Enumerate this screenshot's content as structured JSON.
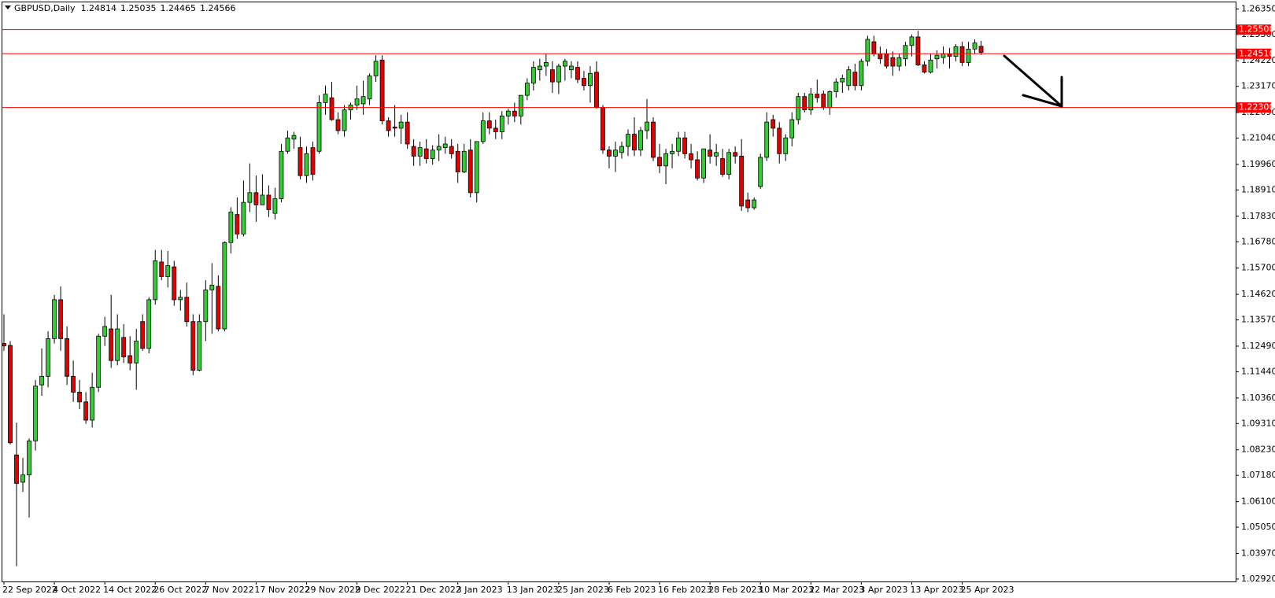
{
  "chart_data": {
    "type": "candlestick",
    "title": "GBPUSD,Daily",
    "categories": [
      "22 Sep 2022",
      null,
      null,
      null,
      null,
      null,
      null,
      null,
      "4 Oct 2022",
      null,
      null,
      null,
      null,
      null,
      null,
      null,
      "14 Oct 2022",
      null,
      null,
      null,
      null,
      null,
      null,
      null,
      "26 Oct 2022",
      null,
      null,
      null,
      null,
      null,
      null,
      null,
      "7 Nov 2022",
      null,
      null,
      null,
      null,
      null,
      null,
      null,
      "17 Nov 2022",
      null,
      null,
      null,
      null,
      null,
      null,
      null,
      "29 Nov 2022",
      null,
      null,
      null,
      null,
      null,
      null,
      null,
      "9 Dec 2022",
      null,
      null,
      null,
      null,
      null,
      null,
      null,
      "21 Dec 2022",
      null,
      null,
      null,
      null,
      null,
      null,
      null,
      "3 Jan 2023",
      null,
      null,
      null,
      null,
      null,
      null,
      null,
      "13 Jan 2023",
      null,
      null,
      null,
      null,
      null,
      null,
      null,
      "25 Jan 2023",
      null,
      null,
      null,
      null,
      null,
      null,
      null,
      "6 Feb 2023",
      null,
      null,
      null,
      null,
      null,
      null,
      null,
      "16 Feb 2023",
      null,
      null,
      null,
      null,
      null,
      null,
      null,
      "28 Feb 2023",
      null,
      null,
      null,
      null,
      null,
      null,
      null,
      "10 Mar 2023",
      null,
      null,
      null,
      null,
      null,
      null,
      null,
      "22 Mar 2023",
      null,
      null,
      null,
      null,
      null,
      null,
      null,
      "3 Apr 2023",
      null,
      null,
      null,
      null,
      null,
      null,
      null,
      "13 Apr 2023",
      null,
      null,
      null,
      null,
      null,
      null,
      null,
      "25 Apr 2023",
      null,
      null,
      null
    ],
    "open": [
      1.126,
      1.1252,
      1.0802,
      1.069,
      1.072,
      1.086,
      1.109,
      1.1125,
      1.128,
      1.144,
      1.128,
      1.1125,
      1.106,
      1.102,
      1.0945,
      1.108,
      1.129,
      1.132,
      1.119,
      1.1285,
      1.121,
      1.118,
      1.135,
      1.124,
      1.144,
      1.1595,
      1.1535,
      1.1575,
      1.144,
      1.145,
      1.135,
      1.115,
      1.135,
      1.148,
      1.1495,
      1.132,
      1.1675,
      1.179,
      1.171,
      1.184,
      1.188,
      1.183,
      1.187,
      1.1795,
      1.1855,
      1.205,
      1.21,
      1.2065,
      1.195,
      1.2065,
      1.205,
      1.225,
      1.227,
      1.218,
      1.2135,
      1.222,
      1.224,
      1.2245,
      1.2265,
      1.236,
      1.2425,
      1.2175,
      1.215,
      1.2145,
      1.217,
      1.207,
      1.203,
      1.206,
      1.202,
      1.2055,
      1.2065,
      1.207,
      1.205,
      1.1965,
      1.2055,
      1.188,
      1.209,
      1.2175,
      1.2145,
      1.213,
      1.2195,
      1.2215,
      1.2195,
      1.228,
      1.233,
      1.2385,
      1.24,
      1.2385,
      1.2335,
      1.24,
      1.2385,
      1.2395,
      1.235,
      1.232,
      1.2375,
      1.223,
      1.2055,
      1.203,
      1.2045,
      1.207,
      1.212,
      1.2055,
      1.2135,
      1.217,
      1.2025,
      1.199,
      1.204,
      1.205,
      1.2105,
      1.204,
      1.2015,
      1.194,
      1.2055,
      1.203,
      1.202,
      1.1955,
      1.2045,
      1.203,
      1.185,
      1.1818,
      1.1905,
      1.2025,
      1.218,
      1.2145,
      1.204,
      1.2105,
      1.218,
      1.2275,
      1.222,
      1.2285,
      1.2285,
      1.223,
      1.2295,
      1.2335,
      1.232,
      1.2375,
      1.232,
      1.242,
      1.25,
      1.245,
      1.245,
      1.2435,
      1.24,
      1.243,
      1.2485,
      1.252,
      1.2405,
      1.2375,
      1.243,
      1.2435,
      1.245,
      1.244,
      1.248,
      1.2415,
      1.247,
      1.24814
    ],
    "high": [
      1.138,
      1.127,
      1.0935,
      1.079,
      1.087,
      1.111,
      1.124,
      1.131,
      1.146,
      1.1495,
      1.133,
      1.119,
      1.111,
      1.106,
      1.114,
      1.13,
      1.137,
      1.146,
      1.138,
      1.134,
      1.129,
      1.132,
      1.138,
      1.145,
      1.1645,
      1.1645,
      1.164,
      1.16,
      1.148,
      1.151,
      1.138,
      1.138,
      1.152,
      1.159,
      1.154,
      1.168,
      1.182,
      1.186,
      1.193,
      1.2,
      1.195,
      1.1955,
      1.191,
      1.19,
      1.208,
      1.2135,
      1.213,
      1.211,
      1.207,
      1.209,
      1.228,
      1.232,
      1.2335,
      1.221,
      1.224,
      1.225,
      1.232,
      1.234,
      1.237,
      1.2445,
      1.2445,
      1.219,
      1.224,
      1.22,
      1.221,
      1.21,
      1.209,
      1.21,
      1.2075,
      1.212,
      1.211,
      1.21,
      1.208,
      1.208,
      1.21,
      1.209,
      1.221,
      1.221,
      1.218,
      1.2215,
      1.2225,
      1.225,
      1.228,
      1.235,
      1.242,
      1.243,
      1.245,
      1.242,
      1.241,
      1.243,
      1.242,
      1.242,
      1.238,
      1.24,
      1.242,
      1.224,
      1.207,
      1.209,
      1.209,
      1.214,
      1.219,
      1.215,
      1.2265,
      1.219,
      1.208,
      1.206,
      1.208,
      1.213,
      1.213,
      1.208,
      1.205,
      1.206,
      1.212,
      1.208,
      1.206,
      1.206,
      1.207,
      1.21,
      1.188,
      1.186,
      1.204,
      1.221,
      1.22,
      1.217,
      1.212,
      1.221,
      1.229,
      1.229,
      1.231,
      1.2345,
      1.23,
      1.23,
      1.235,
      1.2365,
      1.24,
      1.241,
      1.243,
      1.2525,
      1.2525,
      1.248,
      1.247,
      1.246,
      1.245,
      1.25,
      1.253,
      1.2545,
      1.242,
      1.245,
      1.2465,
      1.248,
      1.2475,
      1.249,
      1.25,
      1.25,
      1.251,
      1.25035
    ],
    "low": [
      1.123,
      1.0845,
      1.0345,
      1.065,
      1.0545,
      1.082,
      1.1045,
      1.108,
      1.126,
      1.123,
      1.109,
      1.102,
      1.099,
      1.093,
      1.0915,
      1.106,
      1.125,
      1.116,
      1.117,
      1.118,
      1.115,
      1.107,
      1.123,
      1.122,
      1.142,
      1.152,
      1.149,
      1.1415,
      1.1395,
      1.133,
      1.113,
      1.1145,
      1.127,
      1.13,
      1.131,
      1.131,
      1.163,
      1.169,
      1.17,
      1.18,
      1.176,
      1.183,
      1.178,
      1.177,
      1.184,
      1.204,
      1.206,
      1.1935,
      1.192,
      1.193,
      1.204,
      1.22,
      1.2175,
      1.212,
      1.211,
      1.218,
      1.222,
      1.22,
      1.224,
      1.2335,
      1.216,
      1.211,
      1.211,
      1.208,
      1.206,
      1.199,
      1.199,
      1.2,
      1.1995,
      1.201,
      1.204,
      1.202,
      1.192,
      1.196,
      1.186,
      1.184,
      1.208,
      1.212,
      1.21,
      1.21,
      1.216,
      1.217,
      1.216,
      1.226,
      1.23,
      1.234,
      1.236,
      1.229,
      1.2285,
      1.234,
      1.235,
      1.233,
      1.23,
      1.225,
      1.2225,
      1.204,
      1.198,
      1.1965,
      1.202,
      1.203,
      1.203,
      1.203,
      1.21,
      1.201,
      1.196,
      1.1915,
      1.198,
      1.203,
      1.202,
      1.198,
      1.193,
      1.192,
      1.2,
      1.199,
      1.1945,
      1.1935,
      1.2,
      1.1805,
      1.18,
      1.181,
      1.1895,
      1.201,
      1.211,
      1.2,
      1.201,
      1.207,
      1.216,
      1.221,
      1.22,
      1.225,
      1.222,
      1.22,
      1.227,
      1.229,
      1.23,
      1.23,
      1.23,
      1.24,
      1.244,
      1.241,
      1.239,
      1.236,
      1.238,
      1.24,
      1.244,
      1.24,
      1.237,
      1.237,
      1.239,
      1.241,
      1.239,
      1.242,
      1.24,
      1.24,
      1.245,
      1.24465
    ],
    "close": [
      1.125,
      1.0852,
      1.0685,
      1.072,
      1.086,
      1.1085,
      1.1125,
      1.128,
      1.144,
      1.128,
      1.1125,
      1.106,
      1.102,
      1.0945,
      1.108,
      1.129,
      1.133,
      1.119,
      1.132,
      1.1205,
      1.118,
      1.127,
      1.124,
      1.144,
      1.16,
      1.1535,
      1.158,
      1.144,
      1.145,
      1.135,
      1.115,
      1.135,
      1.148,
      1.15,
      1.132,
      1.1675,
      1.18,
      1.171,
      1.184,
      1.188,
      1.183,
      1.187,
      1.181,
      1.1855,
      1.205,
      1.2105,
      1.2115,
      1.195,
      1.204,
      1.1955,
      1.225,
      1.2285,
      1.218,
      1.2135,
      1.222,
      1.224,
      1.2265,
      1.2275,
      1.236,
      1.242,
      1.2175,
      1.2135,
      1.2145,
      1.217,
      1.208,
      1.203,
      1.2065,
      1.202,
      1.2055,
      1.207,
      1.208,
      1.204,
      1.1965,
      1.205,
      1.188,
      1.209,
      1.2175,
      1.2145,
      1.213,
      1.2195,
      1.2215,
      1.2195,
      1.228,
      1.233,
      1.2395,
      1.24,
      1.2415,
      1.2335,
      1.24,
      1.242,
      1.24,
      1.2345,
      1.232,
      1.237,
      1.223,
      1.2055,
      1.203,
      1.2055,
      1.207,
      1.212,
      1.2055,
      1.2135,
      1.217,
      1.2025,
      1.199,
      1.204,
      1.205,
      1.2105,
      1.204,
      1.2015,
      1.194,
      1.206,
      1.203,
      1.2045,
      1.1955,
      1.2045,
      1.203,
      1.1825,
      1.1818,
      1.185,
      1.2025,
      1.217,
      1.2145,
      1.204,
      1.2105,
      1.218,
      1.2275,
      1.222,
      1.2285,
      1.227,
      1.223,
      1.2295,
      1.2335,
      1.235,
      1.2385,
      1.232,
      1.242,
      1.251,
      1.245,
      1.243,
      1.24,
      1.24,
      1.2435,
      1.2485,
      1.252,
      1.2405,
      1.2375,
      1.2425,
      1.2445,
      1.245,
      1.244,
      1.248,
      1.2415,
      1.247,
      1.2495,
      1.24566
    ],
    "up_color": "#33cc33",
    "down_color": "#e00000",
    "ylim": [
      1.0282,
      1.2662
    ],
    "yticks": [
      {
        "value": 1.2635,
        "label": "1.26350"
      },
      {
        "value": 1.253,
        "label": "1.25300"
      },
      {
        "value": 1.2422,
        "label": "1.24220"
      },
      {
        "value": 1.2317,
        "label": "1.23170"
      },
      {
        "value": 1.2209,
        "label": "1.22090"
      },
      {
        "value": 1.2104,
        "label": "1.21040"
      },
      {
        "value": 1.1996,
        "label": "1.19960"
      },
      {
        "value": 1.1891,
        "label": "1.18910"
      },
      {
        "value": 1.1783,
        "label": "1.17830"
      },
      {
        "value": 1.1678,
        "label": "1.16780"
      },
      {
        "value": 1.157,
        "label": "1.15700"
      },
      {
        "value": 1.1462,
        "label": "1.14620"
      },
      {
        "value": 1.1357,
        "label": "1.13570"
      },
      {
        "value": 1.1249,
        "label": "1.12490"
      },
      {
        "value": 1.1144,
        "label": "1.11440"
      },
      {
        "value": 1.1036,
        "label": "1.10360"
      },
      {
        "value": 1.0931,
        "label": "1.09310"
      },
      {
        "value": 1.0823,
        "label": "1.08230"
      },
      {
        "value": 1.0718,
        "label": "1.07180"
      },
      {
        "value": 1.061,
        "label": "1.06100"
      },
      {
        "value": 1.0505,
        "label": "1.05050"
      },
      {
        "value": 1.0397,
        "label": "1.03970"
      },
      {
        "value": 1.0292,
        "label": "1.02920"
      }
    ],
    "levels": [
      {
        "value": 1.255,
        "label": "1.25500"
      },
      {
        "value": 1.2451,
        "label": "1.24510"
      },
      {
        "value": 1.223,
        "label": "1.22300"
      }
    ],
    "level_color": "#ff0000"
  }
}
